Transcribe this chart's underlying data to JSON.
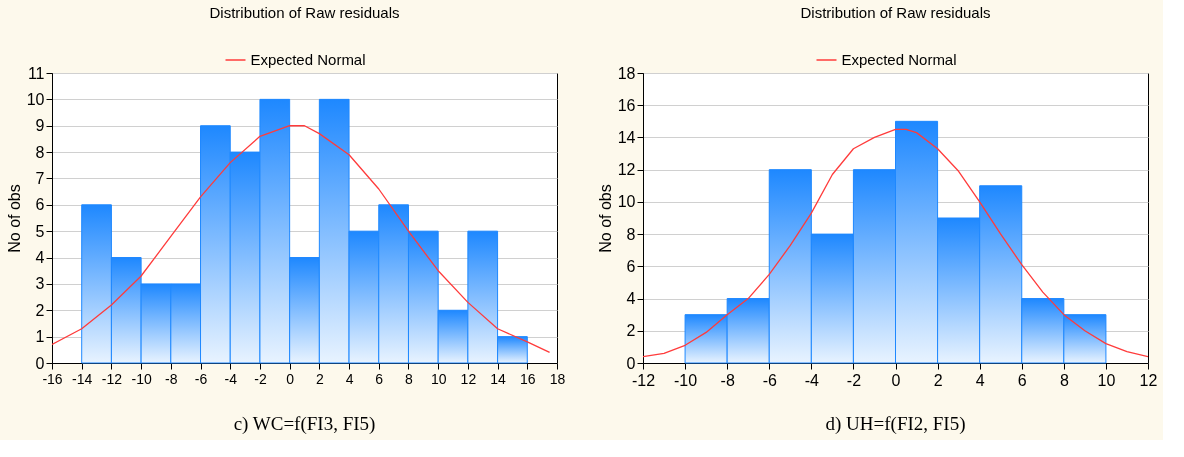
{
  "chart_data": [
    {
      "type": "histogram",
      "title": "Distribution of Raw residuals",
      "ylabel": "No of obs",
      "color": "#1e88ff",
      "bins": [
        -14,
        -12,
        -10,
        -8,
        -6,
        -4,
        -2,
        0,
        2,
        4,
        6,
        8,
        10,
        12,
        14,
        16
      ],
      "values": [
        6,
        4,
        3,
        3,
        9,
        8,
        10,
        4,
        10,
        5,
        6,
        5,
        2,
        5,
        1
      ],
      "series": [
        {
          "type": "line",
          "name": "Expected Normal",
          "color": "#ff3b3b",
          "x": [
            -16,
            -14,
            -12,
            -10,
            -8,
            -6,
            -4,
            -2,
            0,
            1,
            2,
            4,
            6,
            8,
            10,
            12,
            14,
            16,
            17.5
          ],
          "values": [
            0.7,
            1.3,
            2.2,
            3.3,
            4.8,
            6.3,
            7.6,
            8.6,
            9.0,
            9.0,
            8.7,
            7.9,
            6.6,
            5.0,
            3.5,
            2.3,
            1.3,
            0.8,
            0.4
          ]
        }
      ],
      "xlim": [
        -16,
        18
      ],
      "xticks": [
        -16,
        -14,
        -12,
        -10,
        -8,
        -6,
        -4,
        -2,
        0,
        2,
        4,
        6,
        8,
        10,
        12,
        14,
        16,
        18
      ],
      "ylim": [
        0,
        11
      ],
      "yticks": [
        0,
        1,
        2,
        3,
        4,
        5,
        6,
        7,
        8,
        9,
        10,
        11
      ],
      "grid": "y",
      "legend": "top",
      "annotations": [
        "c) WC=f(FI3, FI5)"
      ]
    },
    {
      "type": "histogram",
      "title": "Distribution of Raw residuals",
      "ylabel": "No of obs",
      "color": "#1e88ff",
      "bins": [
        -10,
        -8,
        -6,
        -4,
        -2,
        0,
        2,
        4,
        6,
        8,
        10
      ],
      "values": [
        3,
        4,
        12,
        8,
        12,
        15,
        9,
        11,
        4,
        3
      ],
      "series": [
        {
          "type": "line",
          "name": "Expected Normal",
          "color": "#ff3b3b",
          "x": [
            -12,
            -11,
            -10,
            -9,
            -8,
            -7,
            -6,
            -5,
            -4,
            -3,
            -2,
            -1,
            0,
            0.5,
            1,
            2,
            3,
            4,
            5,
            6,
            7,
            8,
            9,
            10,
            11,
            12
          ],
          "values": [
            0.4,
            0.6,
            1.1,
            1.9,
            3.0,
            4.0,
            5.5,
            7.3,
            9.3,
            11.7,
            13.3,
            14.0,
            14.5,
            14.5,
            14.3,
            13.3,
            11.9,
            10.0,
            8.0,
            6.1,
            4.4,
            3.0,
            2.0,
            1.2,
            0.7,
            0.4
          ]
        }
      ],
      "xlim": [
        -12,
        12
      ],
      "xticks": [
        -12,
        -10,
        -8,
        -6,
        -4,
        -2,
        0,
        2,
        4,
        6,
        8,
        10,
        12
      ],
      "ylim": [
        0,
        18
      ],
      "yticks": [
        0,
        2,
        4,
        6,
        8,
        10,
        12,
        14,
        16,
        18
      ],
      "grid": "y",
      "legend": "top",
      "annotations": [
        "d) UH=f(FI2, FI5)"
      ]
    }
  ]
}
